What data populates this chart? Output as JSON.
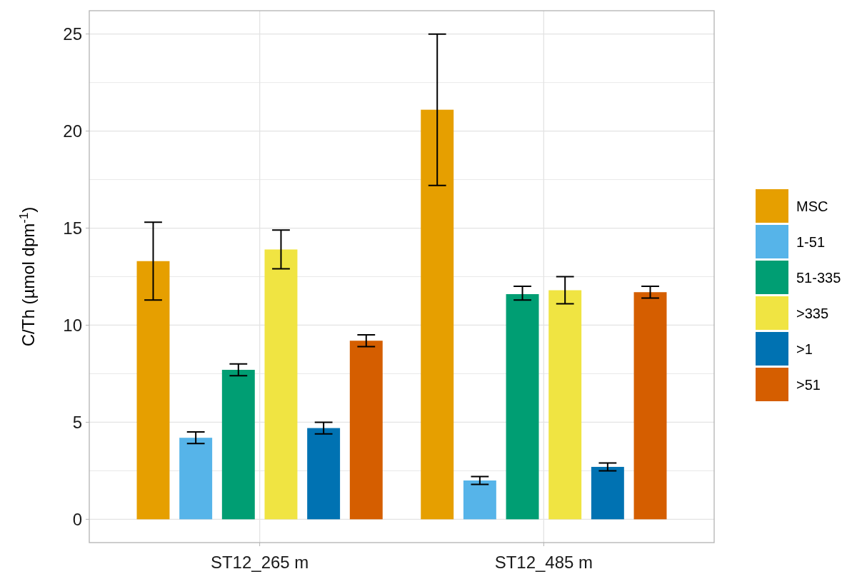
{
  "chart_data": {
    "type": "bar",
    "ylabel": "C/Th (µmol dpm$^{-1}$)",
    "categories": [
      "ST12_265 m",
      "ST12_485 m"
    ],
    "series": [
      {
        "name": "MSC",
        "color": "#e69f00",
        "values": [
          13.3,
          21.1
        ],
        "errors": [
          [
            11.3,
            15.3
          ],
          [
            17.2,
            25.0
          ]
        ]
      },
      {
        "name": "1-51",
        "color": "#56b4e9",
        "values": [
          4.2,
          2.0
        ],
        "errors": [
          [
            3.9,
            4.5
          ],
          [
            1.8,
            2.2
          ]
        ]
      },
      {
        "name": "51-335",
        "color": "#009e73",
        "values": [
          7.7,
          11.6
        ],
        "errors": [
          [
            7.4,
            8.0
          ],
          [
            11.3,
            12.0
          ]
        ]
      },
      {
        "name": ">335",
        "color": "#f0e442",
        "values": [
          13.9,
          11.8
        ],
        "errors": [
          [
            12.9,
            14.9
          ],
          [
            11.1,
            12.5
          ]
        ]
      },
      {
        "name": ">1",
        "color": "#0072b2",
        "values": [
          4.7,
          2.7
        ],
        "errors": [
          [
            4.4,
            5.0
          ],
          [
            2.5,
            2.9
          ]
        ]
      },
      {
        "name": ">51",
        "color": "#d55e00",
        "values": [
          9.2,
          11.7
        ],
        "errors": [
          [
            8.9,
            9.5
          ],
          [
            11.4,
            12.0
          ]
        ]
      }
    ],
    "ylim": [
      -1.2,
      26.2
    ],
    "yticks": [
      0,
      {
        "value": 2.5,
        "label": null
      },
      5,
      {
        "value": 7.5,
        "label": null
      },
      10,
      {
        "value": 12.5,
        "label": null
      },
      15,
      {
        "value": 17.5,
        "label": null
      },
      20,
      {
        "value": 22.5,
        "label": null
      },
      25
    ],
    "grid": true,
    "legend": "right"
  }
}
